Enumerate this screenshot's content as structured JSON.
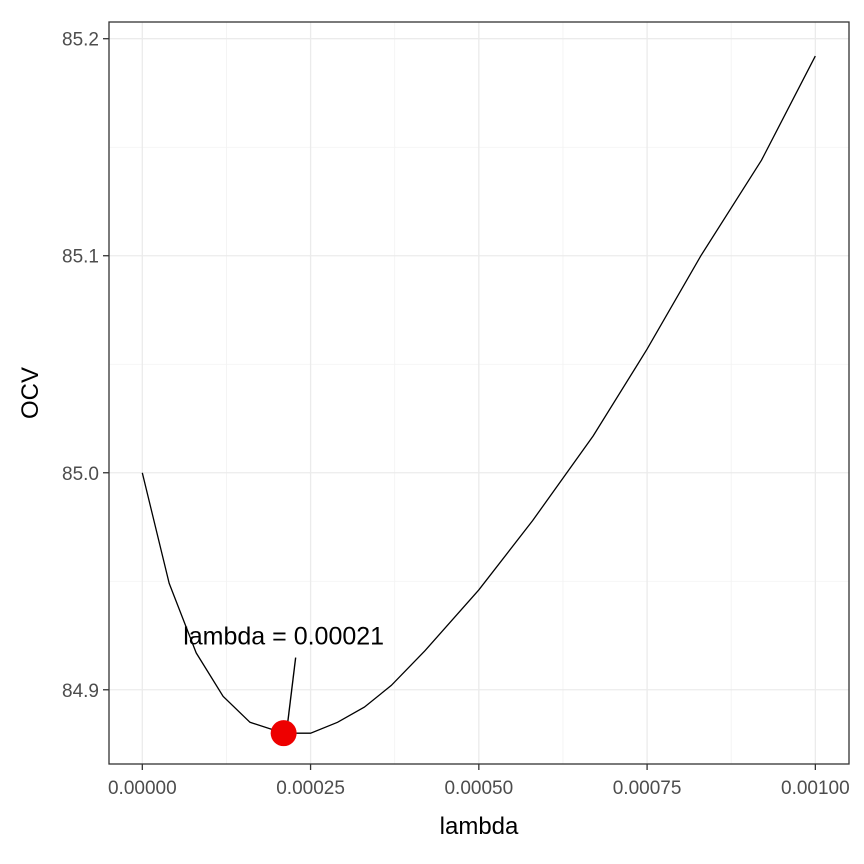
{
  "chart_data": {
    "type": "line",
    "xlabel": "lambda",
    "ylabel": "OCV",
    "xlim": [
      -4.95e-05,
      0.00105
    ],
    "ylim": [
      84.8658,
      85.2077
    ],
    "x_ticks": [
      {
        "value": 0.0,
        "label": "0.00000"
      },
      {
        "value": 0.00025,
        "label": "0.00025"
      },
      {
        "value": 0.0005,
        "label": "0.00050"
      },
      {
        "value": 0.00075,
        "label": "0.00075"
      },
      {
        "value": 0.001,
        "label": "0.00100"
      }
    ],
    "y_ticks": [
      {
        "value": 84.9,
        "label": "84.9"
      },
      {
        "value": 85.0,
        "label": "85.0"
      },
      {
        "value": 85.1,
        "label": "85.1"
      },
      {
        "value": 85.2,
        "label": "85.2"
      }
    ],
    "grid": true,
    "series": [
      {
        "color": "#000000",
        "x": [
          0.0,
          4e-05,
          8e-05,
          0.00012,
          0.00016,
          0.00021,
          0.00025,
          0.00029,
          0.00033,
          0.00037,
          0.00042,
          0.0005,
          0.00058,
          0.00067,
          0.00075,
          0.00083,
          0.00092,
          0.001
        ],
        "y": [
          85.0,
          84.949,
          84.917,
          84.897,
          84.885,
          84.88,
          84.88,
          84.885,
          84.892,
          84.902,
          84.918,
          84.946,
          84.978,
          85.017,
          85.057,
          85.1,
          85.144,
          85.192
        ]
      }
    ],
    "highlight": {
      "x": 0.00021,
      "y": 84.88,
      "color": "#ee0000"
    },
    "annotation": {
      "text": "lambda = 0.00021",
      "x": 0.00021,
      "y": 84.925
    }
  }
}
